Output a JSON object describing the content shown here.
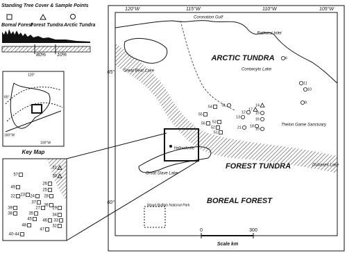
{
  "legend": {
    "title": "Standing Tree Cover & Sample Points",
    "categories": [
      "Boreal Forest",
      "Forest Tundra",
      "Arctic Tundra"
    ],
    "scale_labels": [
      "80%",
      "10%"
    ]
  },
  "key_map": {
    "title": "Key Map",
    "labels": [
      "65°",
      "160°W",
      "100°W",
      "120°"
    ]
  },
  "main_map": {
    "longitudes": [
      "120°W",
      "115°W",
      "110°W",
      "105°W"
    ],
    "latitudes": [
      "65°",
      "60°"
    ],
    "places": [
      "Coronation Gulf",
      "Bathurst Inlet",
      "Great Bear Lake",
      "Contwoyto Lake",
      "Thelon Game Sanctuary",
      "Dubawnt Lake",
      "Yellowknife",
      "Great Slave Lake",
      "Wood Buffalo National Park"
    ],
    "zones": [
      "ARCTIC TUNDRA",
      "FOREST TUNDRA",
      "BOREAL FOREST"
    ],
    "scale": {
      "title": "Scale km",
      "ticks": [
        0,
        300
      ]
    },
    "sample_points": [
      "6",
      "11",
      "10",
      "9",
      "14",
      "17",
      "12",
      "13",
      "15",
      "16",
      "18",
      "19",
      "21",
      "54",
      "55",
      "56",
      "SL",
      "53",
      "52",
      "51"
    ]
  },
  "inset": {
    "sample_points": [
      "57",
      "31",
      "30",
      "26",
      "25",
      "49",
      "22",
      "23",
      "24",
      "28",
      "37",
      "36",
      "27",
      "39",
      "35",
      "29",
      "34",
      "33",
      "38",
      "32",
      "45",
      "46",
      "48",
      "47",
      "40-44"
    ]
  }
}
